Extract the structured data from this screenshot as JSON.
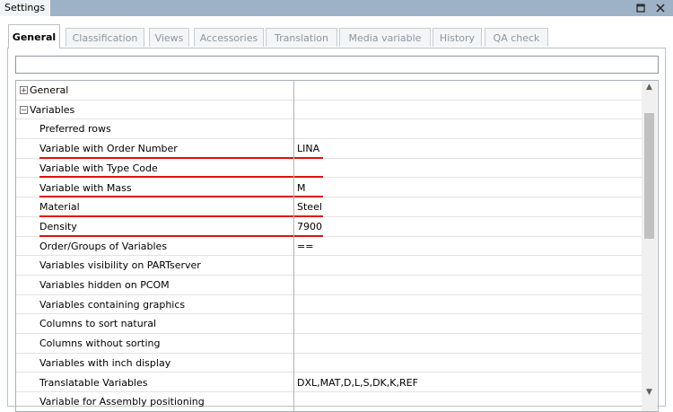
{
  "window": {
    "title": "Settings"
  },
  "tabs": [
    {
      "label": "General",
      "active": true
    },
    {
      "label": "Classification"
    },
    {
      "label": "Views"
    },
    {
      "label": "Accessories"
    },
    {
      "label": "Translation"
    },
    {
      "label": "Media variable"
    },
    {
      "label": "History"
    },
    {
      "label": "QA check"
    }
  ],
  "rows": [
    {
      "label": "General",
      "group": true,
      "expanded": false
    },
    {
      "label": "Variables",
      "group": true,
      "expanded": true
    },
    {
      "label": "Preferred rows"
    },
    {
      "label": "Variable with Order Number",
      "value": "LINA",
      "highlighted": true
    },
    {
      "label": "Variable with Type Code",
      "highlighted": true
    },
    {
      "label": "Variable with Mass",
      "value": "M",
      "highlighted": true
    },
    {
      "label": "Material",
      "value": "Steel",
      "highlighted": true
    },
    {
      "label": "Density",
      "value": "7900",
      "highlighted": true
    },
    {
      "label": "Order/Groups of Variables",
      "value": "=="
    },
    {
      "label": "Variables visibility on PARTserver"
    },
    {
      "label": "Variables hidden on PCOM"
    },
    {
      "label": "Variables containing graphics"
    },
    {
      "label": "Columns to sort natural"
    },
    {
      "label": "Columns without sorting"
    },
    {
      "label": "Variables with inch display"
    },
    {
      "label": "Translatable Variables",
      "value": "DXL,MAT,D,L,S,DK,K,REF"
    },
    {
      "label": "Variable for Assembly positioning"
    }
  ]
}
